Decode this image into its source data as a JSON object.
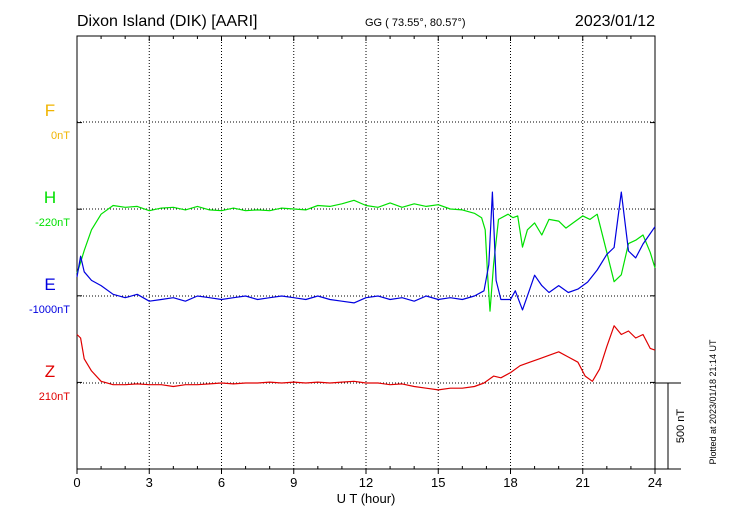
{
  "header": {
    "station": "Dixon Island (DIK)  [AARI]",
    "coords": "GG ( 73.55°,  80.57°)",
    "date": "2023/01/12"
  },
  "plotted_note": "Plotted at 2023/01/18 21:14 UT",
  "scale_label": "500 nT",
  "chart_data": {
    "type": "line",
    "title": "Dixon Island (DIK)  [AARI]",
    "xlabel": "U T (hour)",
    "xlim": [
      0,
      24
    ],
    "xticks": [
      "0",
      "3",
      "6",
      "9",
      "12",
      "15",
      "18",
      "21",
      "24"
    ],
    "grid": true,
    "scale_nT_per_band": 500,
    "series": [
      {
        "name": "F",
        "baseline_label": "0nT",
        "color": "#f0b400",
        "points": []
      },
      {
        "name": "H",
        "baseline_label": "-220nT",
        "color": "#00e000",
        "points": [
          [
            0,
            -370
          ],
          [
            0.1,
            -330
          ],
          [
            0.3,
            -240
          ],
          [
            0.6,
            -120
          ],
          [
            1,
            -30
          ],
          [
            1.5,
            20
          ],
          [
            2,
            10
          ],
          [
            2.5,
            15
          ],
          [
            3,
            -10
          ],
          [
            3.5,
            5
          ],
          [
            4,
            10
          ],
          [
            4.5,
            -5
          ],
          [
            5,
            15
          ],
          [
            5.5,
            -5
          ],
          [
            6,
            -10
          ],
          [
            6.5,
            5
          ],
          [
            7,
            -10
          ],
          [
            7.5,
            -5
          ],
          [
            8,
            -10
          ],
          [
            8.5,
            5
          ],
          [
            9,
            0
          ],
          [
            9.5,
            -5
          ],
          [
            10,
            20
          ],
          [
            10.5,
            15
          ],
          [
            11,
            30
          ],
          [
            11.5,
            50
          ],
          [
            12,
            20
          ],
          [
            12.5,
            10
          ],
          [
            13,
            35
          ],
          [
            13.5,
            10
          ],
          [
            14,
            30
          ],
          [
            14.5,
            15
          ],
          [
            15,
            25
          ],
          [
            15.5,
            0
          ],
          [
            16,
            -5
          ],
          [
            16.5,
            -25
          ],
          [
            16.8,
            -50
          ],
          [
            16.95,
            -120
          ],
          [
            17.05,
            -380
          ],
          [
            17.15,
            -590
          ],
          [
            17.3,
            -320
          ],
          [
            17.5,
            -60
          ],
          [
            17.9,
            -30
          ],
          [
            18.1,
            -50
          ],
          [
            18.3,
            -40
          ],
          [
            18.5,
            -220
          ],
          [
            18.7,
            -120
          ],
          [
            19,
            -80
          ],
          [
            19.3,
            -150
          ],
          [
            19.6,
            -60
          ],
          [
            20,
            -70
          ],
          [
            20.3,
            -110
          ],
          [
            20.6,
            -80
          ],
          [
            21,
            -40
          ],
          [
            21.3,
            -60
          ],
          [
            21.6,
            -30
          ],
          [
            22,
            -250
          ],
          [
            22.3,
            -420
          ],
          [
            22.6,
            -380
          ],
          [
            22.9,
            -200
          ],
          [
            23.2,
            -180
          ],
          [
            23.5,
            -150
          ],
          [
            23.8,
            -250
          ],
          [
            24,
            -340
          ]
        ]
      },
      {
        "name": "E",
        "baseline_label": "-1000nT",
        "color": "#0000e0",
        "points": [
          [
            0,
            110
          ],
          [
            0.15,
            230
          ],
          [
            0.3,
            140
          ],
          [
            0.6,
            90
          ],
          [
            1,
            60
          ],
          [
            1.5,
            10
          ],
          [
            2,
            -10
          ],
          [
            2.5,
            10
          ],
          [
            3,
            -30
          ],
          [
            3.5,
            -20
          ],
          [
            4,
            -10
          ],
          [
            4.5,
            -30
          ],
          [
            5,
            0
          ],
          [
            5.5,
            -10
          ],
          [
            6,
            -20
          ],
          [
            6.5,
            -10
          ],
          [
            7,
            0
          ],
          [
            7.5,
            -20
          ],
          [
            8,
            -10
          ],
          [
            8.5,
            0
          ],
          [
            9,
            -10
          ],
          [
            9.5,
            -20
          ],
          [
            10,
            0
          ],
          [
            10.5,
            -20
          ],
          [
            11,
            -30
          ],
          [
            11.5,
            -40
          ],
          [
            12,
            -10
          ],
          [
            12.5,
            0
          ],
          [
            13,
            -20
          ],
          [
            13.5,
            -10
          ],
          [
            14,
            -30
          ],
          [
            14.5,
            0
          ],
          [
            15,
            -20
          ],
          [
            15.5,
            -10
          ],
          [
            16,
            -20
          ],
          [
            16.5,
            0
          ],
          [
            16.9,
            30
          ],
          [
            17.1,
            180
          ],
          [
            17.25,
            600
          ],
          [
            17.4,
            90
          ],
          [
            17.6,
            -20
          ],
          [
            18,
            -20
          ],
          [
            18.2,
            30
          ],
          [
            18.5,
            -80
          ],
          [
            18.8,
            40
          ],
          [
            19,
            120
          ],
          [
            19.3,
            60
          ],
          [
            19.6,
            20
          ],
          [
            20,
            60
          ],
          [
            20.4,
            20
          ],
          [
            20.8,
            40
          ],
          [
            21.2,
            80
          ],
          [
            21.6,
            150
          ],
          [
            22,
            240
          ],
          [
            22.3,
            280
          ],
          [
            22.6,
            600
          ],
          [
            22.9,
            260
          ],
          [
            23.2,
            220
          ],
          [
            23.5,
            300
          ],
          [
            23.8,
            360
          ],
          [
            24,
            400
          ]
        ]
      },
      {
        "name": "Z",
        "baseline_label": "210nT",
        "color": "#e00000",
        "points": [
          [
            0,
            280
          ],
          [
            0.15,
            260
          ],
          [
            0.3,
            140
          ],
          [
            0.6,
            70
          ],
          [
            1,
            10
          ],
          [
            1.5,
            -10
          ],
          [
            2,
            -10
          ],
          [
            2.5,
            -5
          ],
          [
            3,
            -10
          ],
          [
            3.5,
            -10
          ],
          [
            4,
            -20
          ],
          [
            4.5,
            -10
          ],
          [
            5,
            -10
          ],
          [
            5.5,
            -5
          ],
          [
            6,
            0
          ],
          [
            6.5,
            -5
          ],
          [
            7,
            0
          ],
          [
            7.5,
            0
          ],
          [
            8,
            5
          ],
          [
            8.5,
            0
          ],
          [
            9,
            5
          ],
          [
            9.5,
            0
          ],
          [
            10,
            5
          ],
          [
            10.5,
            0
          ],
          [
            11,
            5
          ],
          [
            11.5,
            10
          ],
          [
            12,
            0
          ],
          [
            12.5,
            0
          ],
          [
            13,
            -10
          ],
          [
            13.5,
            -5
          ],
          [
            14,
            -20
          ],
          [
            14.5,
            -30
          ],
          [
            15,
            -40
          ],
          [
            15.5,
            -30
          ],
          [
            16,
            -30
          ],
          [
            16.5,
            -20
          ],
          [
            16.9,
            0
          ],
          [
            17.3,
            40
          ],
          [
            17.6,
            30
          ],
          [
            18,
            60
          ],
          [
            18.4,
            100
          ],
          [
            18.8,
            120
          ],
          [
            19.2,
            140
          ],
          [
            19.6,
            160
          ],
          [
            20,
            180
          ],
          [
            20.4,
            150
          ],
          [
            20.8,
            120
          ],
          [
            21.1,
            40
          ],
          [
            21.4,
            10
          ],
          [
            21.7,
            80
          ],
          [
            22,
            210
          ],
          [
            22.3,
            330
          ],
          [
            22.6,
            280
          ],
          [
            22.9,
            300
          ],
          [
            23.2,
            260
          ],
          [
            23.5,
            280
          ],
          [
            23.8,
            200
          ],
          [
            24,
            190
          ]
        ]
      }
    ]
  }
}
